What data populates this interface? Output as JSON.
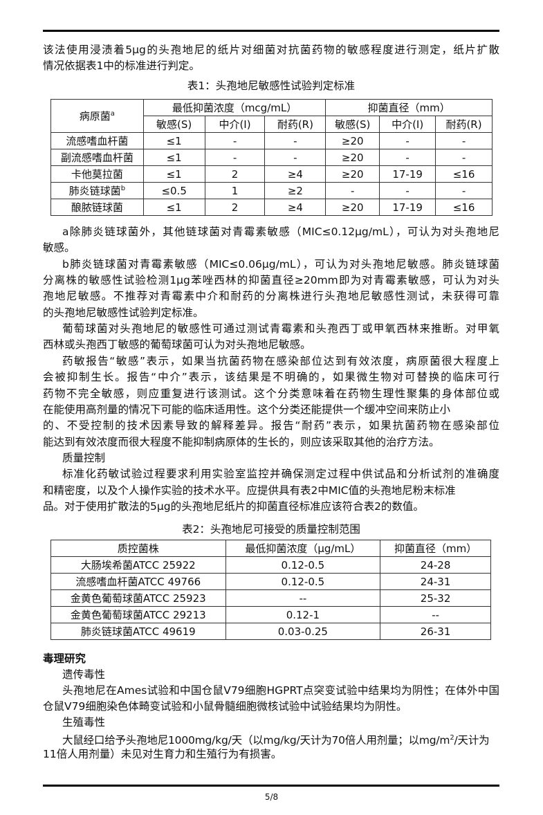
{
  "intro": [
    "该法使用浸渍着5μg的头孢地尼的纸片对细菌对抗菌药物的敏感程度进行测定，纸片扩散",
    "情况依据表1中的标准进行判定。"
  ],
  "table1": {
    "caption": "表1：头孢地尼敏感性试验判定标准",
    "pathogen_header": "病原菌",
    "pathogen_sup": "a",
    "group1": "最低抑菌浓度（mcg/mL）",
    "group2": "抑菌直径（mm）",
    "subheaders": [
      "敏感(S)",
      "中介(I)",
      "耐药(R)",
      "敏感(S)",
      "中介(I)",
      "耐药(R)"
    ],
    "rows": [
      {
        "name": "流感嗜血杆菌",
        "sup": "",
        "cells": [
          "≤1",
          "-",
          "-",
          "≥20",
          "-",
          "-"
        ]
      },
      {
        "name": "副流感嗜血杆菌",
        "sup": "",
        "cells": [
          "≤1",
          "-",
          "-",
          "≥20",
          "-",
          "-"
        ]
      },
      {
        "name": "卡他莫拉菌",
        "sup": "",
        "cells": [
          "≤1",
          "2",
          "≥4",
          "≥20",
          "17-19",
          "≤16"
        ]
      },
      {
        "name": "肺炎链球菌",
        "sup": "b",
        "cells": [
          "≤0.5",
          "1",
          "≥2",
          "-",
          "-",
          "-"
        ]
      },
      {
        "name": "酿脓链球菌",
        "sup": "",
        "cells": [
          "≤1",
          "2",
          "≥4",
          "≥20",
          "17-19",
          "≤16"
        ]
      }
    ]
  },
  "body_lines": [
    {
      "t": "a除肺炎链球菌外，其他链球菌对青霉素敏感（MIC≤0.12μg/mL），可认为对头孢地尼",
      "ind": true,
      "full": true
    },
    {
      "t": "敏感。",
      "ind": false,
      "full": false
    },
    {
      "t": "b肺炎链球菌对青霉素敏感（MIC≤0.06μg/mL），可认为对头孢地尼敏感。肺炎链球菌",
      "ind": true,
      "full": true
    },
    {
      "t": "分离株的敏感性试验检测1μg苯唑西林的抑菌直径≥20mm即为对青霉素敏感，可认为对头",
      "ind": false,
      "full": true
    },
    {
      "t": "孢地尼敏感。不推荐对青霉素中介和耐药的分离株进行头孢地尼敏感性测试，未获得可靠",
      "ind": false,
      "full": true
    },
    {
      "t": "的头孢地尼敏感性试验判定标准。",
      "ind": false,
      "full": false
    },
    {
      "t": "葡萄球菌对头孢地尼的敏感性可通过测试青霉素和头孢西丁或甲氧西林来推断。对甲氧",
      "ind": true,
      "full": true
    },
    {
      "t": "西林或头孢西丁敏感的葡萄球菌可认为对头孢地尼敏感。",
      "ind": false,
      "full": false
    },
    {
      "t": "药敏报告“敏感”表示，如果当抗菌药物在感染部位达到有效浓度，病原菌很大程度上",
      "ind": true,
      "full": true
    },
    {
      "t": "会被抑制生长。报告“中介”表示，该结果是不明确的，如果微生物对可替换的临床可行",
      "ind": false,
      "full": true
    },
    {
      "t": "药物不完全敏感，则应重复进行该测试。这个分类意味着在药物生理性聚集的身体部位或",
      "ind": false,
      "full": true
    },
    {
      "t": "在能使用高剂量的情况下可能的临床适用性。这个分类还能提供一个缓冲空间来防止小",
      "ind": false,
      "full": false
    },
    {
      "t": "的、不受控制的技术因素导致的解释差异。报告“耐药”表示，如果抗菌药物在感染部位",
      "ind": false,
      "full": true
    },
    {
      "t": "能达到有效浓度而很大程度不能抑制病原体的生长的，则应该采取其他的治疗方法。",
      "ind": false,
      "full": false
    },
    {
      "t": "质量控制",
      "ind": true,
      "full": false
    },
    {
      "t": "标准化药敏试验过程要求利用实验室监控并确保测定过程中供试品和分析试剂的准确度",
      "ind": true,
      "full": true
    },
    {
      "t": "和精密度，以及个人操作实验的技术水平。应提供具有表2中MIC值的头孢地尼粉末标准",
      "ind": false,
      "full": false
    },
    {
      "t": "品。对于使用扩散法的5μg的头孢地尼纸片的抑菌直径标准应该符合表2的数值。",
      "ind": false,
      "full": false
    }
  ],
  "table2": {
    "caption": "表2：头孢地尼可接受的质量控制范围",
    "headers": [
      "质控菌株",
      "最低抑菌浓度（μg/mL）",
      "抑菌直径（mm）"
    ],
    "rows": [
      [
        "大肠埃希菌ATCC 25922",
        "0.12-0.5",
        "24-28"
      ],
      [
        "流感嗜血杆菌ATCC 49766",
        "0.12-0.5",
        "24-31"
      ],
      [
        "金黄色葡萄球菌ATCC 25923",
        "--",
        "25-32"
      ],
      [
        "金黄色葡萄球菌ATCC 29213",
        "0.12-1",
        "--"
      ],
      [
        "肺炎链球菌ATCC 49619",
        "0.03-0.25",
        "26-31"
      ]
    ]
  },
  "tox": {
    "heading": "毒理研究",
    "genetic_heading": "遗传毒性",
    "genetic_lines": [
      "头孢地尼在Ames试验和中国仓鼠V79细胞HGPRT点突变试验中结果均为阴性；在体外中国",
      "仓鼠V79细胞染色体畸变试验和小鼠骨髓细胞微核试验中试验结果均为阴性。"
    ],
    "repro_heading": "生殖毒性",
    "repro_line1_a": "大鼠经口给予头孢地尼1000mg/kg/天（以mg/kg/天计为70倍人用剂量；以mg/m",
    "repro_line1_sup": "2",
    "repro_line1_b": "/天计为",
    "repro_line2": "11倍人用剂量）未见对生育力和生殖行为有损害。"
  },
  "footer": {
    "page": "5/8"
  }
}
